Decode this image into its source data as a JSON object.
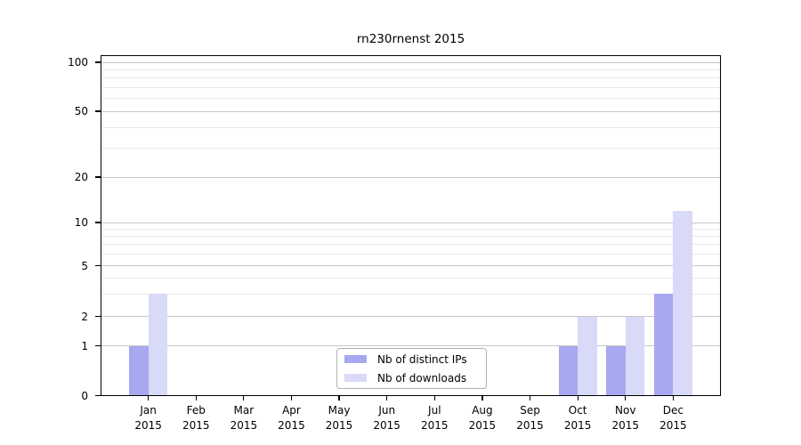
{
  "chart_data": {
    "type": "bar",
    "title": "rn230rnenst 2015",
    "categories": [
      "Jan",
      "Feb",
      "Mar",
      "Apr",
      "May",
      "Jun",
      "Jul",
      "Aug",
      "Sep",
      "Oct",
      "Nov",
      "Dec"
    ],
    "x_sublabel": "2015",
    "series": [
      {
        "name": "Nb of distinct IPs",
        "color": "#a8a8f0",
        "values": [
          1,
          0,
          0,
          0,
          0,
          0,
          0,
          0,
          0,
          1,
          1,
          3
        ]
      },
      {
        "name": "Nb of downloads",
        "color": "#d9d9f8",
        "values": [
          3,
          0,
          0,
          0,
          0,
          0,
          0,
          0,
          0,
          2,
          2,
          12
        ]
      }
    ],
    "y_axis": {
      "scale": "log-like",
      "tick_values": [
        0,
        1,
        2,
        5,
        10,
        20,
        50,
        100
      ],
      "tick_labels": [
        "0",
        "1",
        "2",
        "5",
        "10",
        "20",
        "50",
        "100"
      ],
      "minor_gridline_values": [
        3,
        4,
        6,
        7,
        8,
        9,
        30,
        40,
        60,
        70,
        80,
        90
      ],
      "range": [
        0,
        110
      ]
    },
    "legend": {
      "position": "lower center (inside plot)",
      "entries": [
        "Nb of distinct IPs",
        "Nb of downloads"
      ]
    },
    "grid": "horizontal on",
    "xlabel": "",
    "ylabel": "",
    "colors": {
      "major_gridline": "#c8c8c8",
      "minor_gridline": "#e9e9e9",
      "spine": "#000000",
      "background": "#ffffff",
      "text": "#000000"
    }
  }
}
